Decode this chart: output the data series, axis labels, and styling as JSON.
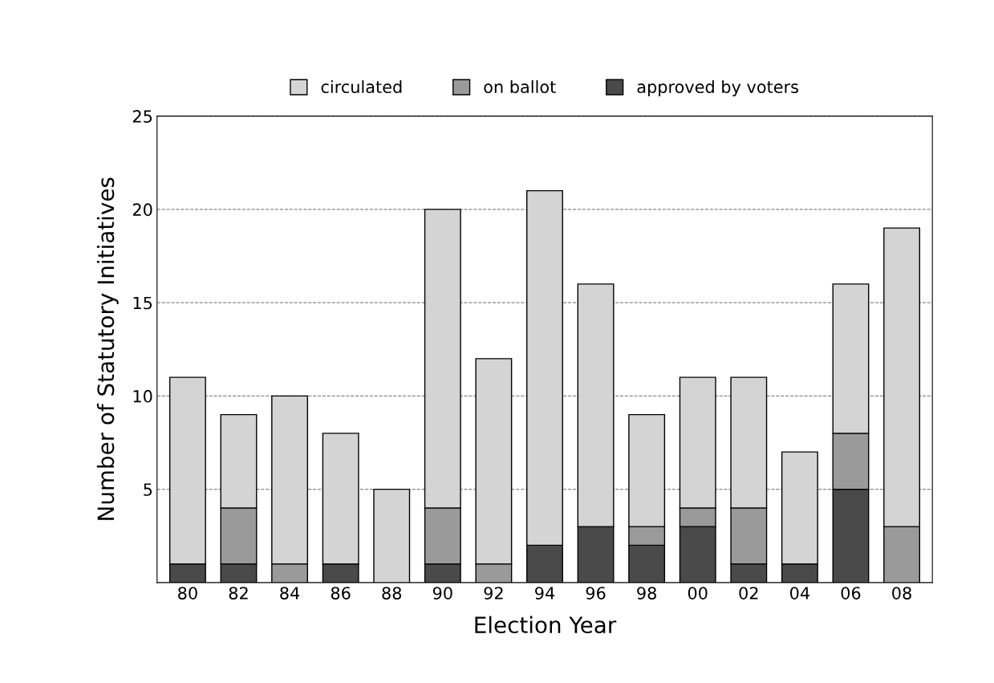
{
  "chart_data": {
    "type": "bar",
    "stacked": true,
    "xlabel": "Election Year",
    "ylabel": "Number of Statutory Initiatives",
    "categories": [
      "80",
      "82",
      "84",
      "86",
      "88",
      "90",
      "92",
      "94",
      "96",
      "98",
      "00",
      "02",
      "04",
      "06",
      "08"
    ],
    "series": [
      {
        "name": "approved by voters",
        "color": "#4a4a4a",
        "values": [
          1,
          1,
          0,
          1,
          0,
          1,
          0,
          2,
          3,
          2,
          3,
          1,
          1,
          5,
          0
        ]
      },
      {
        "name": "on ballot",
        "color": "#9a9a9a",
        "values": [
          0,
          3,
          1,
          0,
          0,
          3,
          1,
          0,
          0,
          1,
          1,
          3,
          0,
          3,
          3
        ]
      },
      {
        "name": "circulated",
        "color": "#d4d4d4",
        "values": [
          10,
          5,
          9,
          7,
          5,
          16,
          11,
          19,
          13,
          6,
          7,
          7,
          6,
          8,
          16
        ]
      }
    ],
    "ylim": [
      0,
      25
    ],
    "yticks": [
      5,
      10,
      15,
      20,
      25
    ],
    "grid": "y",
    "legend": "top"
  }
}
